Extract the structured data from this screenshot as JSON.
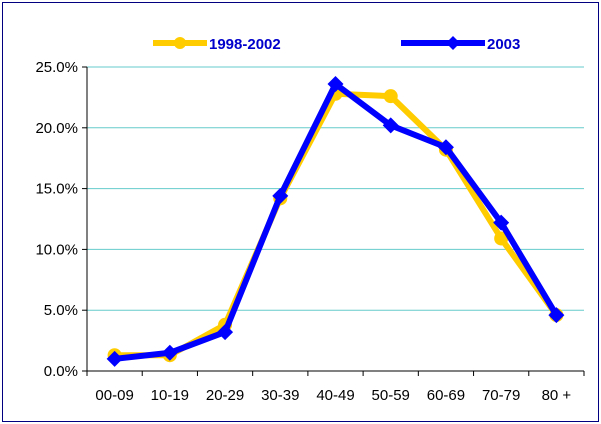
{
  "chart_data": {
    "type": "line",
    "title": "",
    "xlabel": "",
    "ylabel": "",
    "categories": [
      "00-09",
      "10-19",
      "20-29",
      "30-39",
      "40-49",
      "50-59",
      "60-69",
      "70-79",
      "80 +"
    ],
    "ylim": [
      0,
      25
    ],
    "y_ticks": [
      "0.0%",
      "5.0%",
      "10.0%",
      "15.0%",
      "20.0%",
      "25.0%"
    ],
    "y_tick_values": [
      0,
      5,
      10,
      15,
      20,
      25
    ],
    "grid": "horizontal",
    "legend_position": "top",
    "series": [
      {
        "name": "1998-2002",
        "color": "#ffcc00",
        "marker": "circle",
        "values": [
          1.3,
          1.3,
          3.8,
          14.2,
          22.8,
          22.6,
          18.2,
          10.9,
          4.6
        ]
      },
      {
        "name": "2003",
        "color": "#0000ff",
        "marker": "diamond",
        "values": [
          1.0,
          1.5,
          3.2,
          14.4,
          23.6,
          20.2,
          18.4,
          12.2,
          4.6
        ]
      }
    ],
    "colors": {
      "grid": "#66cccc",
      "axis": "#000000",
      "frame": "#000080"
    }
  }
}
